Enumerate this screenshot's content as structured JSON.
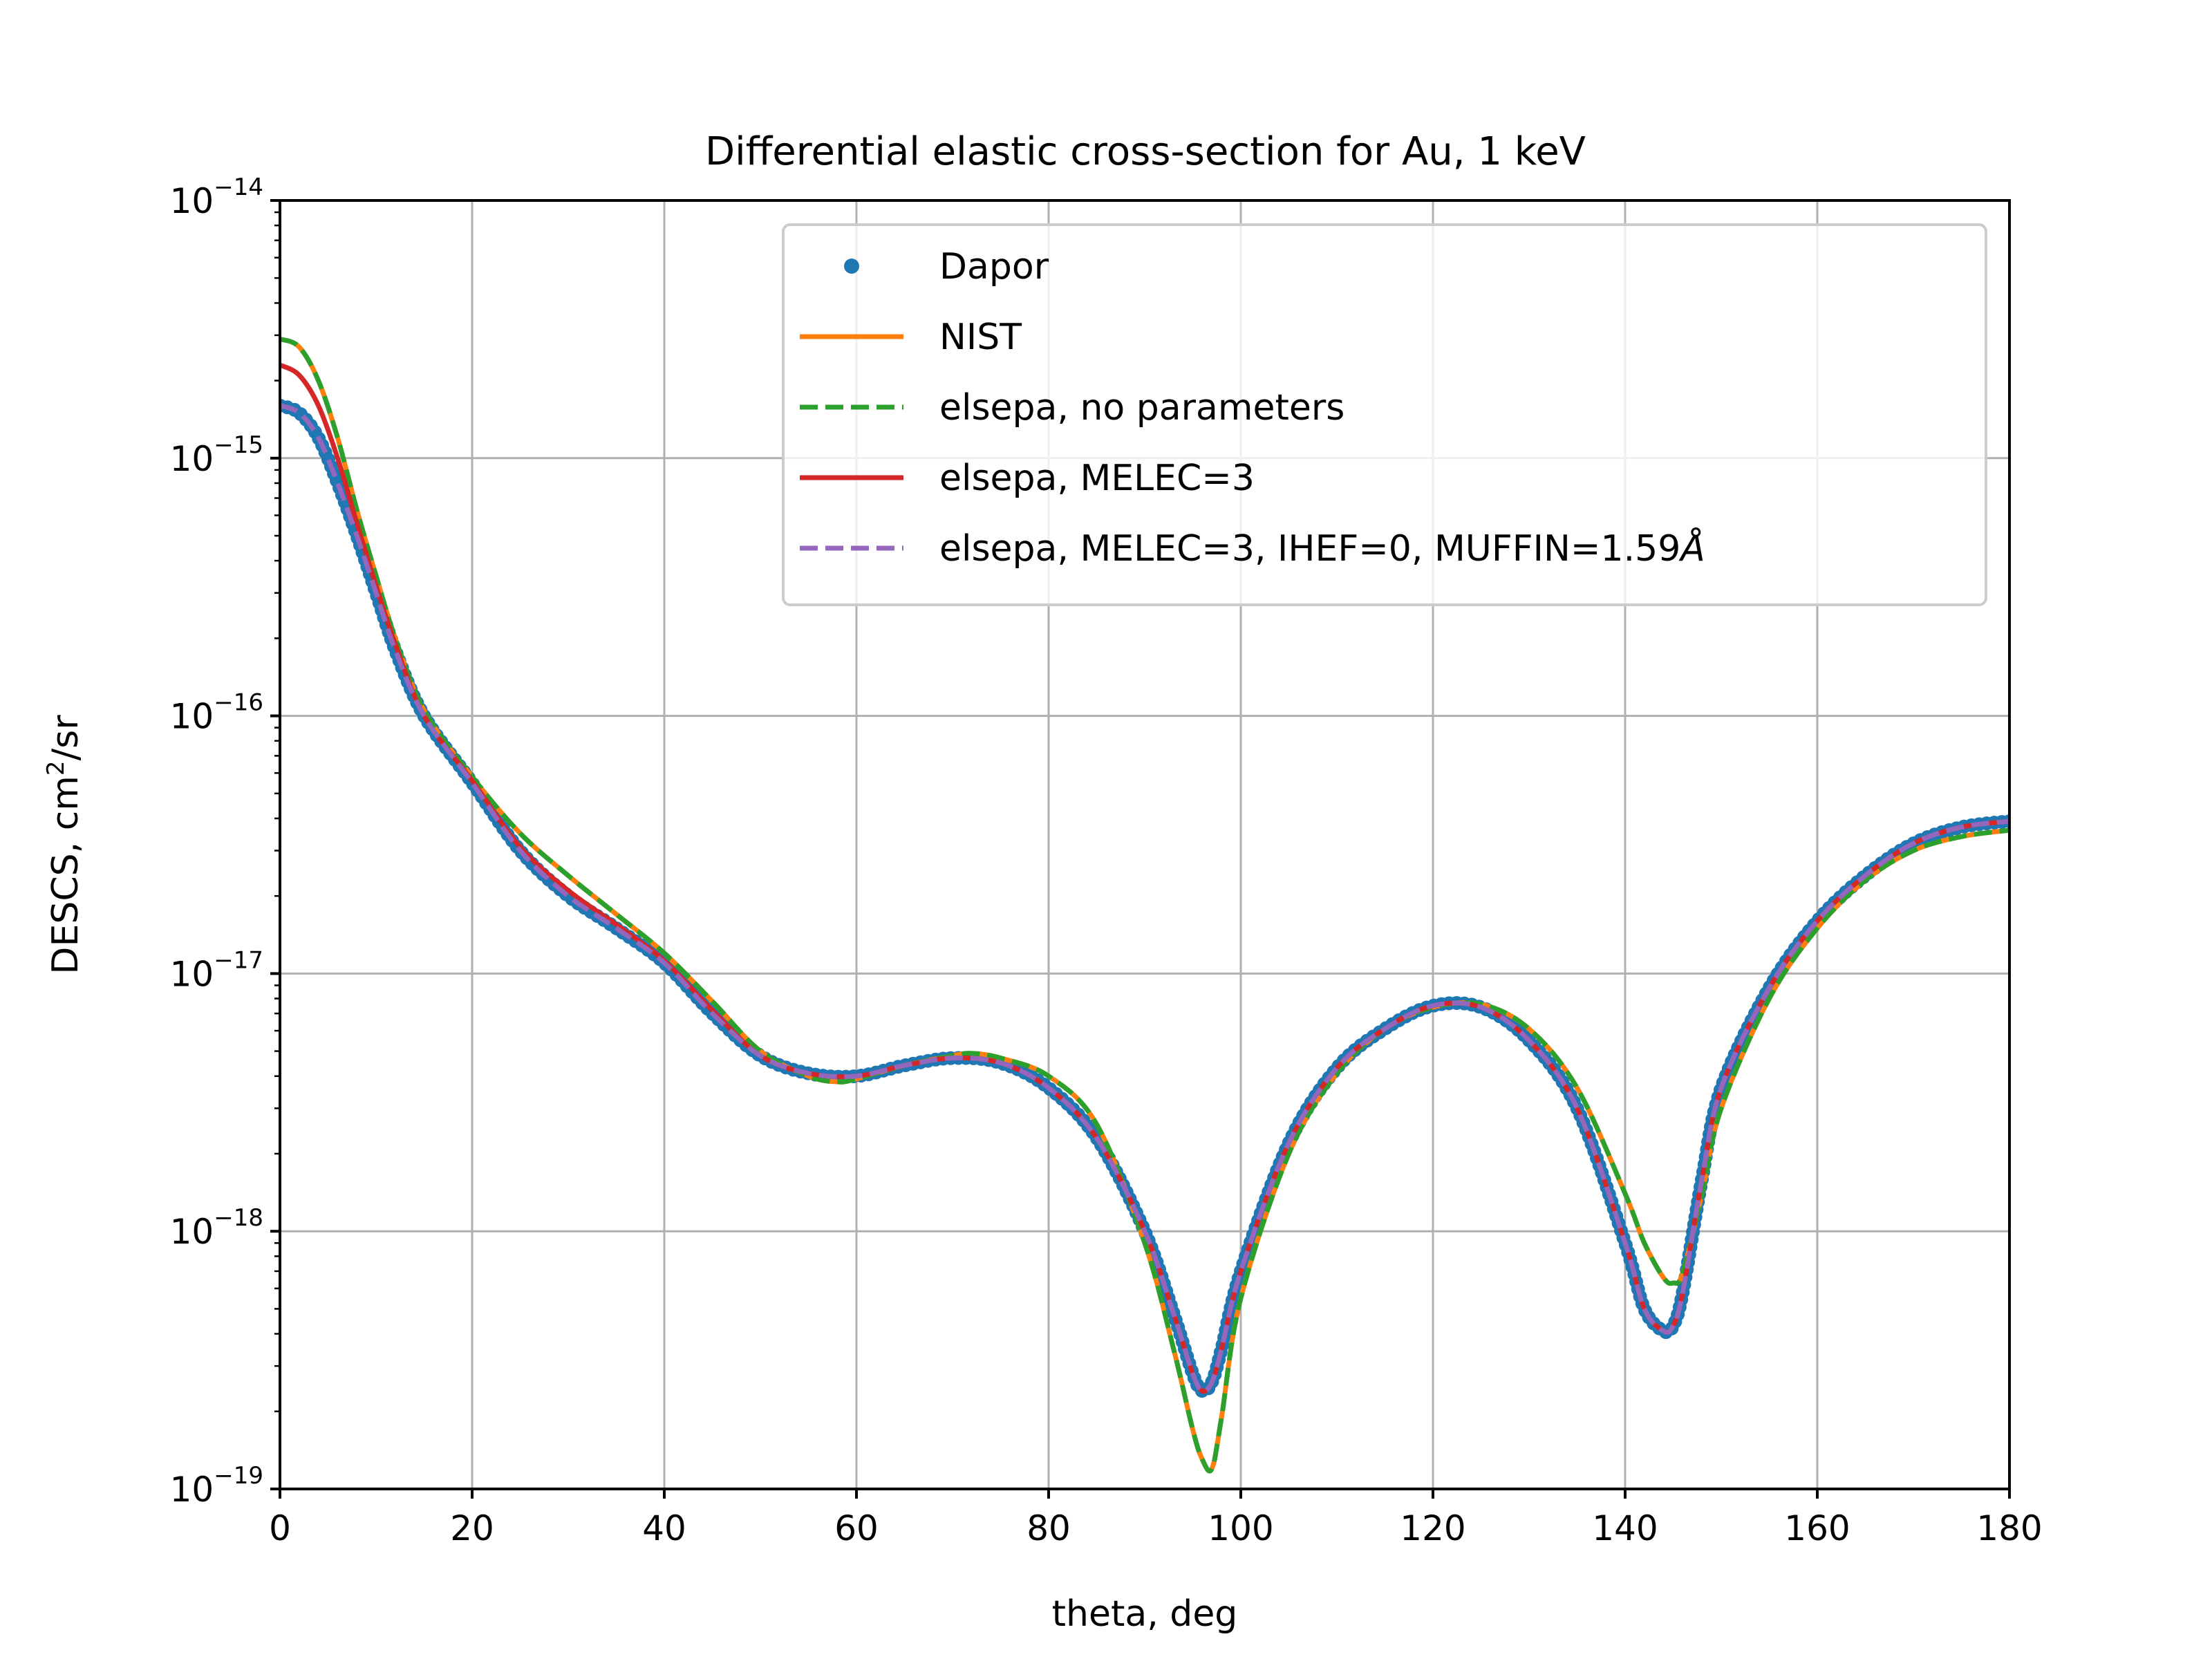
{
  "chart_data": {
    "type": "line",
    "title": "Differential elastic cross-section for Au, 1 keV",
    "xlabel": "theta, deg",
    "ylabel": "DESCS, cm²/sr",
    "ylabel_parts": {
      "base": "DESCS, cm",
      "sup": "2",
      "rest": "/sr"
    },
    "xlim": [
      0,
      180
    ],
    "ylim": [
      1e-19,
      1e-14
    ],
    "yscale": "log",
    "grid": true,
    "legend_position": "upper center",
    "x_ticks": [
      0,
      20,
      40,
      60,
      80,
      100,
      120,
      140,
      160,
      180
    ],
    "y_ticks": [
      {
        "value": 1e-19,
        "base": "10",
        "exp": "−19"
      },
      {
        "value": 1e-18,
        "base": "10",
        "exp": "−18"
      },
      {
        "value": 1e-17,
        "base": "10",
        "exp": "−17"
      },
      {
        "value": 1e-16,
        "base": "10",
        "exp": "−16"
      },
      {
        "value": 1e-15,
        "base": "10",
        "exp": "−15"
      },
      {
        "value": 1e-14,
        "base": "10",
        "exp": "−14"
      }
    ],
    "series": [
      {
        "name": "Dapor",
        "style": "dots",
        "color": "#1f77b4",
        "x": [
          0,
          2,
          4,
          6,
          8,
          10,
          12,
          15,
          20,
          25,
          30,
          35,
          40,
          45,
          50,
          55,
          60,
          65,
          70,
          75,
          80,
          85,
          90,
          93,
          95,
          96,
          97,
          98,
          100,
          105,
          110,
          115,
          120,
          125,
          130,
          135,
          140,
          142,
          144,
          145,
          146,
          148,
          150,
          155,
          160,
          165,
          170,
          175,
          180
        ],
        "y": [
          1.6e-15,
          1.5e-15,
          1.2e-15,
          8e-16,
          5e-16,
          3e-16,
          1.8e-16,
          1e-16,
          5.5e-17,
          3e-17,
          2e-17,
          1.5e-17,
          1.1e-17,
          7e-18,
          4.8e-18,
          4.1e-18,
          4e-18,
          4.4e-18,
          4.7e-18,
          4.5e-18,
          3.6e-18,
          2.3e-18,
          1e-18,
          4.8e-19,
          2.8e-19,
          2.4e-19,
          2.6e-19,
          3.5e-19,
          7e-19,
          2.2e-18,
          4.3e-18,
          6.1e-18,
          7.5e-18,
          7.4e-18,
          5.5e-18,
          3e-18,
          9e-19,
          5e-19,
          4.1e-19,
          4.3e-19,
          5.8e-19,
          1.6e-18,
          3.6e-18,
          8.8e-18,
          1.6e-17,
          2.4e-17,
          3.2e-17,
          3.7e-17,
          3.9e-17
        ]
      },
      {
        "name": "NIST",
        "style": "solid",
        "color": "#ff7f0e",
        "x": [
          0,
          2,
          4,
          6,
          8,
          10,
          12,
          15,
          20,
          25,
          30,
          35,
          40,
          45,
          50,
          55,
          58,
          60,
          65,
          70,
          72,
          75,
          80,
          85,
          90,
          93,
          95,
          96,
          97,
          98,
          100,
          105,
          110,
          115,
          120,
          125,
          130,
          135,
          140,
          142,
          144,
          145,
          146,
          148,
          150,
          155,
          160,
          165,
          170,
          175,
          180
        ],
        "y": [
          2.9e-15,
          2.7e-15,
          2e-15,
          1.2e-15,
          6.3e-16,
          3.5e-16,
          2e-16,
          1.05e-16,
          5.8e-17,
          3.5e-17,
          2.4e-17,
          1.7e-17,
          1.2e-17,
          7.8e-18,
          5e-18,
          4e-18,
          3.8e-18,
          3.9e-18,
          4.4e-18,
          4.8e-18,
          4.9e-18,
          4.7e-18,
          4e-18,
          2.6e-18,
          9e-19,
          3.5e-19,
          1.7e-19,
          1.3e-19,
          1.2e-19,
          1.9e-19,
          5.5e-19,
          2e-18,
          4.1e-18,
          6.1e-18,
          7.4e-18,
          7.6e-18,
          6.1e-18,
          3.6e-18,
          1.4e-18,
          9e-19,
          6.6e-19,
          6.3e-19,
          6.9e-19,
          1.4e-18,
          3e-18,
          8e-18,
          1.5e-17,
          2.3e-17,
          3e-17,
          3.4e-17,
          3.6e-17
        ]
      },
      {
        "name": "elsepa, no parameters",
        "style": "dashed",
        "color": "#2ca02c",
        "x": [
          0,
          2,
          4,
          6,
          8,
          10,
          12,
          15,
          20,
          25,
          30,
          35,
          40,
          45,
          50,
          55,
          58,
          60,
          65,
          70,
          72,
          75,
          80,
          85,
          90,
          93,
          95,
          96,
          97,
          98,
          100,
          105,
          110,
          115,
          120,
          125,
          130,
          135,
          140,
          142,
          144,
          145,
          146,
          148,
          150,
          155,
          160,
          165,
          170,
          175,
          180
        ],
        "y": [
          2.9e-15,
          2.7e-15,
          2e-15,
          1.2e-15,
          6.3e-16,
          3.5e-16,
          2e-16,
          1.05e-16,
          5.8e-17,
          3.5e-17,
          2.4e-17,
          1.7e-17,
          1.2e-17,
          7.8e-18,
          5e-18,
          4e-18,
          3.8e-18,
          3.9e-18,
          4.4e-18,
          4.8e-18,
          4.9e-18,
          4.7e-18,
          4e-18,
          2.6e-18,
          9e-19,
          3.5e-19,
          1.7e-19,
          1.3e-19,
          1.2e-19,
          1.9e-19,
          5.5e-19,
          2e-18,
          4.1e-18,
          6.1e-18,
          7.4e-18,
          7.6e-18,
          6.1e-18,
          3.6e-18,
          1.4e-18,
          9e-19,
          6.6e-19,
          6.3e-19,
          6.9e-19,
          1.4e-18,
          3e-18,
          8e-18,
          1.5e-17,
          2.3e-17,
          3e-17,
          3.4e-17,
          3.6e-17
        ]
      },
      {
        "name": "elsepa, MELEC=3",
        "style": "solid",
        "color": "#d62728",
        "x": [
          0,
          2,
          4,
          6,
          8,
          10,
          12,
          15,
          20,
          25,
          30,
          35,
          40,
          45,
          50,
          55,
          60,
          65,
          70,
          75,
          80,
          85,
          90,
          93,
          95,
          96,
          97,
          98,
          100,
          105,
          110,
          115,
          120,
          125,
          130,
          135,
          140,
          142,
          144,
          145,
          146,
          148,
          150,
          155,
          160,
          165,
          170,
          175,
          180
        ],
        "y": [
          2.3e-15,
          2.1e-15,
          1.6e-15,
          1e-15,
          5.6e-16,
          3.2e-16,
          1.9e-16,
          1e-16,
          5.6e-17,
          3.1e-17,
          2.1e-17,
          1.55e-17,
          1.12e-17,
          7.2e-18,
          4.8e-18,
          4.1e-18,
          4e-18,
          4.4e-18,
          4.7e-18,
          4.5e-18,
          3.6e-18,
          2.3e-18,
          1e-18,
          4.8e-19,
          2.8e-19,
          2.4e-19,
          2.6e-19,
          3.5e-19,
          7e-19,
          2.2e-18,
          4.3e-18,
          6.1e-18,
          7.5e-18,
          7.4e-18,
          5.5e-18,
          3e-18,
          9e-19,
          5e-19,
          4.1e-19,
          4.3e-19,
          5.8e-19,
          1.6e-18,
          3.6e-18,
          8.8e-18,
          1.6e-17,
          2.4e-17,
          3.2e-17,
          3.7e-17,
          3.9e-17
        ]
      },
      {
        "name": "elsepa, MELEC=3, IHEF=0, MUFFIN=1.59",
        "name_suffix": "Å",
        "style": "dashed",
        "color": "#9467bd",
        "x": [
          0,
          2,
          4,
          6,
          8,
          10,
          12,
          15,
          20,
          25,
          30,
          35,
          40,
          45,
          50,
          55,
          60,
          65,
          70,
          75,
          80,
          85,
          90,
          93,
          95,
          96,
          97,
          98,
          100,
          105,
          110,
          115,
          120,
          125,
          130,
          135,
          140,
          142,
          144,
          145,
          146,
          148,
          150,
          155,
          160,
          165,
          170,
          175,
          180
        ],
        "y": [
          1.6e-15,
          1.5e-15,
          1.2e-15,
          8e-16,
          5e-16,
          3e-16,
          1.8e-16,
          1e-16,
          5.5e-17,
          3e-17,
          2e-17,
          1.5e-17,
          1.1e-17,
          7e-18,
          4.8e-18,
          4.1e-18,
          4e-18,
          4.4e-18,
          4.7e-18,
          4.5e-18,
          3.6e-18,
          2.3e-18,
          1e-18,
          4.8e-19,
          2.8e-19,
          2.4e-19,
          2.6e-19,
          3.5e-19,
          7e-19,
          2.2e-18,
          4.3e-18,
          6.1e-18,
          7.5e-18,
          7.4e-18,
          5.5e-18,
          3e-18,
          9e-19,
          5e-19,
          4.1e-19,
          4.3e-19,
          5.8e-19,
          1.6e-18,
          3.6e-18,
          8.8e-18,
          1.6e-17,
          2.4e-17,
          3.2e-17,
          3.7e-17,
          3.9e-17
        ]
      }
    ]
  }
}
